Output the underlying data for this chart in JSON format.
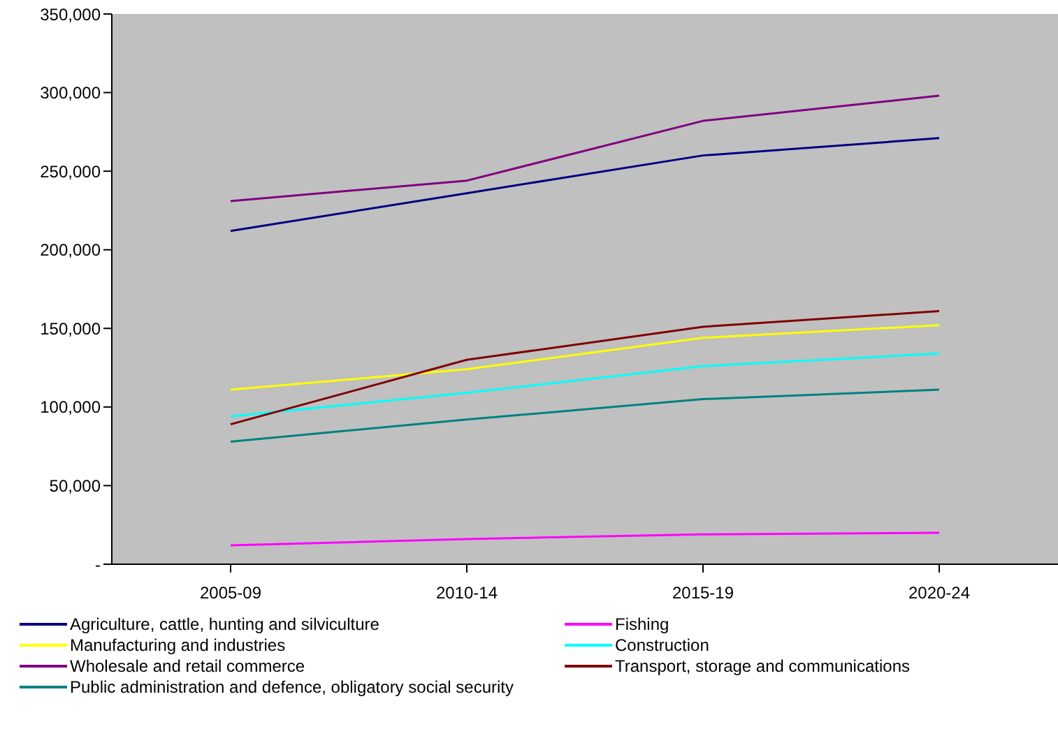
{
  "chart_data": {
    "type": "line",
    "categories": [
      "2005-09",
      "2010-14",
      "2015-19",
      "2020-24"
    ],
    "series": [
      {
        "name": "Agriculture, cattle, hunting and silviculture",
        "color": "#000080",
        "values": [
          212000,
          236000,
          260000,
          271000
        ]
      },
      {
        "name": "Fishing",
        "color": "#ff00ff",
        "values": [
          12000,
          16000,
          19000,
          20000
        ]
      },
      {
        "name": "Manufacturing and industries",
        "color": "#ffff00",
        "values": [
          111000,
          124000,
          144000,
          152000
        ]
      },
      {
        "name": "Construction",
        "color": "#00ffff",
        "values": [
          94000,
          109000,
          126000,
          134000
        ]
      },
      {
        "name": "Wholesale and retail commerce",
        "color": "#800080",
        "values": [
          231000,
          244000,
          282000,
          298000
        ]
      },
      {
        "name": "Transport, storage and communications",
        "color": "#800000",
        "values": [
          89000,
          130000,
          151000,
          161000
        ]
      },
      {
        "name": "Public administration and defence, obligatory social security",
        "color": "#008080",
        "values": [
          78000,
          92000,
          105000,
          111000
        ]
      }
    ],
    "ylim": [
      0,
      350000
    ],
    "yticks": [
      {
        "value": 0,
        "label": "-"
      },
      {
        "value": 50000,
        "label": "50,000"
      },
      {
        "value": 100000,
        "label": "100,000"
      },
      {
        "value": 150000,
        "label": "150,000"
      },
      {
        "value": 200000,
        "label": "200,000"
      },
      {
        "value": 250000,
        "label": "250,000"
      },
      {
        "value": 300000,
        "label": "300,000"
      },
      {
        "value": 350000,
        "label": "350,000"
      }
    ],
    "legend": "bottom",
    "marker": "none",
    "line_style": "solid"
  }
}
